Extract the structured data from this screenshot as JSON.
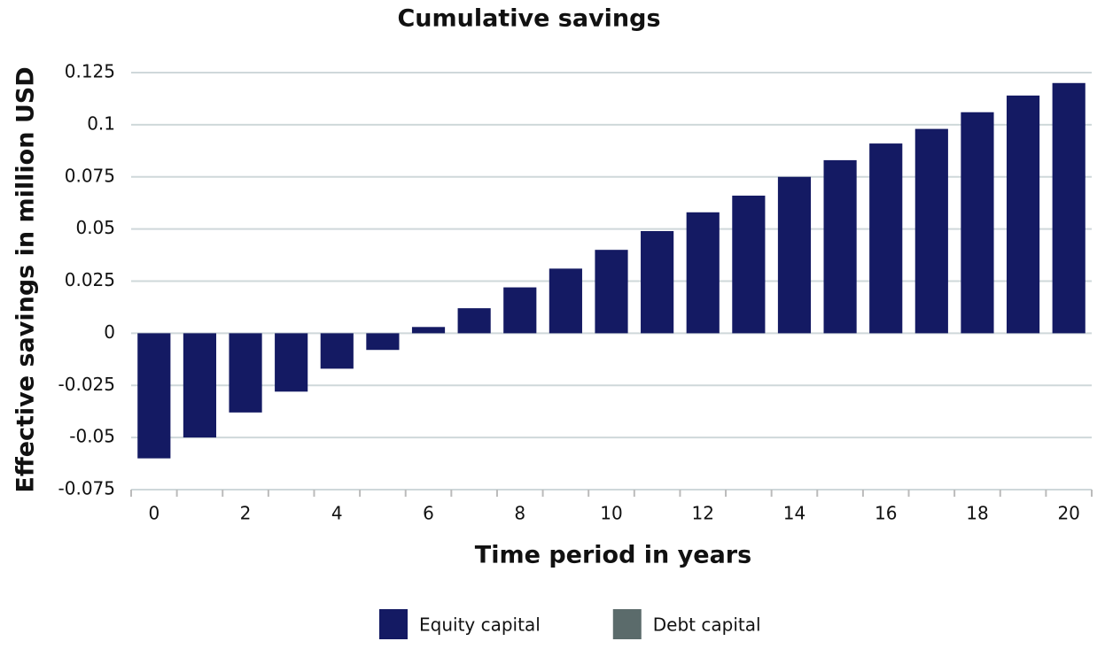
{
  "chart_data": {
    "type": "bar",
    "title": "Cumulative savings",
    "x_label": "Time period in years",
    "y_label": "Effective savings in million USD",
    "categories": [
      0,
      null,
      2,
      null,
      4,
      null,
      6,
      null,
      8,
      null,
      10,
      null,
      12,
      null,
      14,
      null,
      16,
      null,
      18,
      null,
      20
    ],
    "series": [
      {
        "name": "Equity capital",
        "color": "#141a63",
        "values": [
          -0.06,
          -0.05,
          -0.038,
          -0.028,
          -0.017,
          -0.008,
          0.003,
          0.012,
          0.022,
          0.031,
          0.04,
          0.049,
          0.058,
          0.066,
          0.075,
          0.083,
          0.091,
          0.098,
          0.106,
          0.114,
          0.12
        ]
      },
      {
        "name": "Debt capital",
        "color": "#5b6b6b",
        "values": [
          null,
          null,
          null,
          null,
          null,
          null,
          null,
          null,
          null,
          null,
          null,
          null,
          null,
          null,
          null,
          null,
          null,
          null,
          null,
          null,
          null
        ]
      }
    ],
    "ylim": [
      -0.075,
      0.125
    ],
    "yticks": [
      -0.075,
      -0.05,
      -0.025,
      0,
      0.025,
      0.05,
      0.075,
      0.1,
      0.125
    ],
    "grid": true,
    "legend": "bottom"
  }
}
